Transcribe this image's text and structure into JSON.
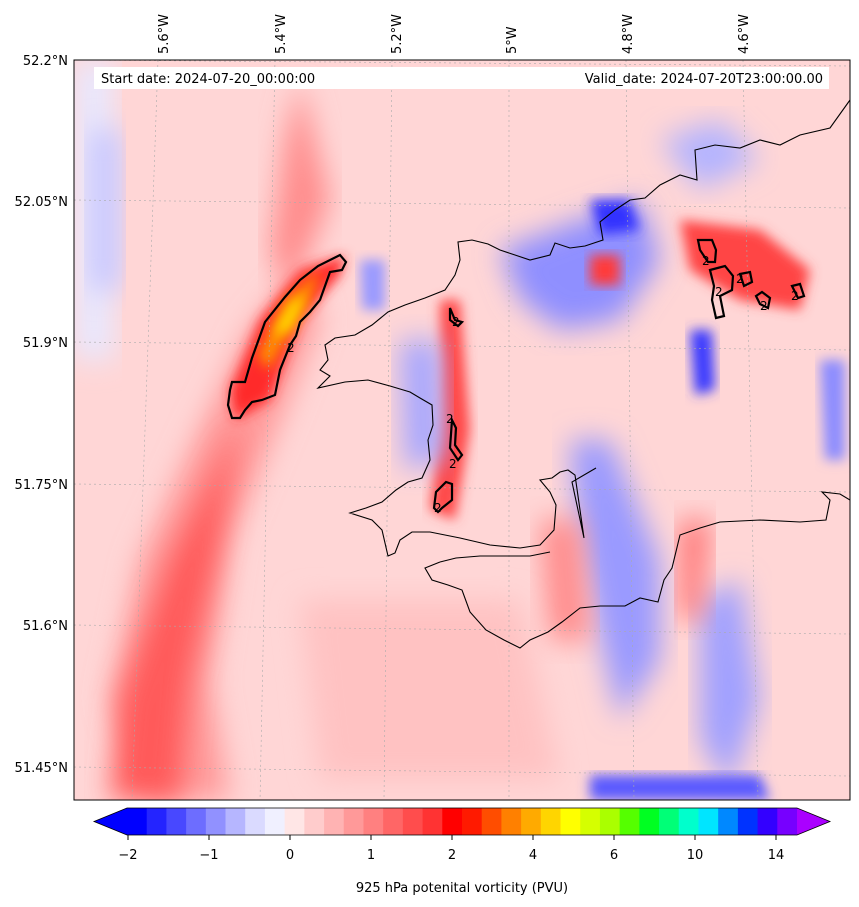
{
  "header": {
    "start_date": "Start date: 2024-07-20_00:00:00",
    "valid_date": "Valid_date: 2024-07-20T23:00:00.00"
  },
  "axes": {
    "lon_labels": [
      "5.6°W",
      "5.4°W",
      "5.2°W",
      "5°W",
      "4.8°W",
      "4.6°W"
    ],
    "lat_labels": [
      "52.2°N",
      "52.05°N",
      "51.9°N",
      "51.75°N",
      "51.6°N",
      "51.45°N"
    ],
    "lon_values": [
      -5.6,
      -5.4,
      -5.2,
      -5.0,
      -4.8,
      -4.6
    ],
    "lat_values": [
      52.2,
      52.05,
      51.9,
      51.75,
      51.6,
      51.45
    ]
  },
  "colorbar": {
    "label": "925 hPa potenital vorticity (PVU)",
    "tick_labels": [
      "−2",
      "−1",
      "0",
      "1",
      "2",
      "4",
      "6",
      "10",
      "14"
    ],
    "colors": [
      "#0000ff",
      "#2424ff",
      "#4848ff",
      "#6d6dff",
      "#9191ff",
      "#b6b6ff",
      "#dadaff",
      "#f0f0ff",
      "#ffe6e6",
      "#ffcccc",
      "#ffb3b3",
      "#ff9999",
      "#ff8080",
      "#ff6666",
      "#ff4d4d",
      "#ff3333",
      "#ff0000",
      "#ff1a00",
      "#ff4d00",
      "#ff8000",
      "#ffaa00",
      "#ffd500",
      "#ffff00",
      "#d5ff00",
      "#aaff00",
      "#55ff00",
      "#00ff22",
      "#00ff77",
      "#00ffcc",
      "#00e5ff",
      "#0088ff",
      "#0033ff",
      "#3300ff",
      "#7700ff"
    ],
    "extend_low_color": "#0000ff",
    "extend_high_color": "#aa00ff"
  },
  "contour": {
    "level_label": "2"
  }
}
